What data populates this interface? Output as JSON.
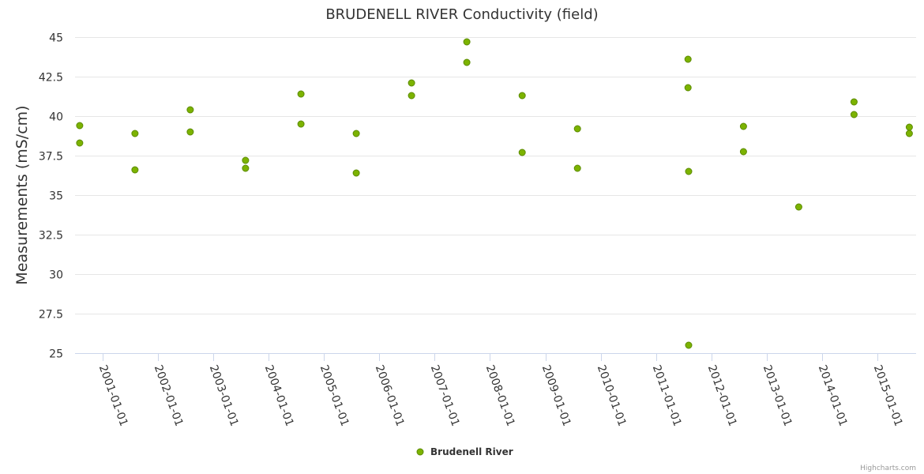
{
  "chart_data": {
    "type": "scatter",
    "title": "BRUDENELL RIVER Conductivity (field)",
    "xlabel": "",
    "ylabel": "Measurements (mS/cm)",
    "ylim": [
      25,
      45
    ],
    "yticks": [
      "25",
      "27.5",
      "30",
      "32.5",
      "35",
      "37.5",
      "40",
      "42.5",
      "45"
    ],
    "xlim": [
      "2000-07-01",
      "2015-09-15"
    ],
    "xticks": [
      "2001-01-01",
      "2002-01-01",
      "2003-01-01",
      "2004-01-01",
      "2005-01-01",
      "2006-01-01",
      "2007-01-01",
      "2008-01-01",
      "2009-01-01",
      "2010-01-01",
      "2011-01-01",
      "2012-01-01",
      "2013-01-01",
      "2014-01-01",
      "2015-01-01"
    ],
    "grid": true,
    "legend_position": "bottom-center",
    "series": [
      {
        "name": "Brudenell River",
        "color": "#6aa121",
        "marker_fill": "#7cb300",
        "points": [
          {
            "x": "2000-08-01",
            "y": 39.4
          },
          {
            "x": "2000-08-01",
            "y": 38.3
          },
          {
            "x": "2001-08-01",
            "y": 38.9
          },
          {
            "x": "2001-08-01",
            "y": 36.6
          },
          {
            "x": "2002-08-01",
            "y": 40.4
          },
          {
            "x": "2002-08-01",
            "y": 39.0
          },
          {
            "x": "2003-08-01",
            "y": 37.2
          },
          {
            "x": "2003-08-01",
            "y": 36.7
          },
          {
            "x": "2004-08-01",
            "y": 41.4
          },
          {
            "x": "2004-08-01",
            "y": 39.5
          },
          {
            "x": "2005-08-01",
            "y": 38.9
          },
          {
            "x": "2005-08-01",
            "y": 36.4
          },
          {
            "x": "2006-08-01",
            "y": 42.1
          },
          {
            "x": "2006-08-01",
            "y": 41.3
          },
          {
            "x": "2007-08-01",
            "y": 44.7
          },
          {
            "x": "2007-08-01",
            "y": 43.4
          },
          {
            "x": "2008-08-01",
            "y": 41.3
          },
          {
            "x": "2008-08-01",
            "y": 37.7
          },
          {
            "x": "2009-08-01",
            "y": 39.2
          },
          {
            "x": "2009-08-01",
            "y": 36.7
          },
          {
            "x": "2011-08-01",
            "y": 43.6
          },
          {
            "x": "2011-08-01",
            "y": 41.8
          },
          {
            "x": "2011-08-05",
            "y": 36.5
          },
          {
            "x": "2011-08-05",
            "y": 25.5
          },
          {
            "x": "2012-08-01",
            "y": 39.35
          },
          {
            "x": "2012-08-01",
            "y": 37.75
          },
          {
            "x": "2013-08-01",
            "y": 34.25
          },
          {
            "x": "2014-08-01",
            "y": 40.9
          },
          {
            "x": "2014-08-01",
            "y": 40.1
          },
          {
            "x": "2015-08-01",
            "y": 39.3
          },
          {
            "x": "2015-08-01",
            "y": 38.9
          }
        ]
      }
    ]
  },
  "credits": "Highcharts.com"
}
